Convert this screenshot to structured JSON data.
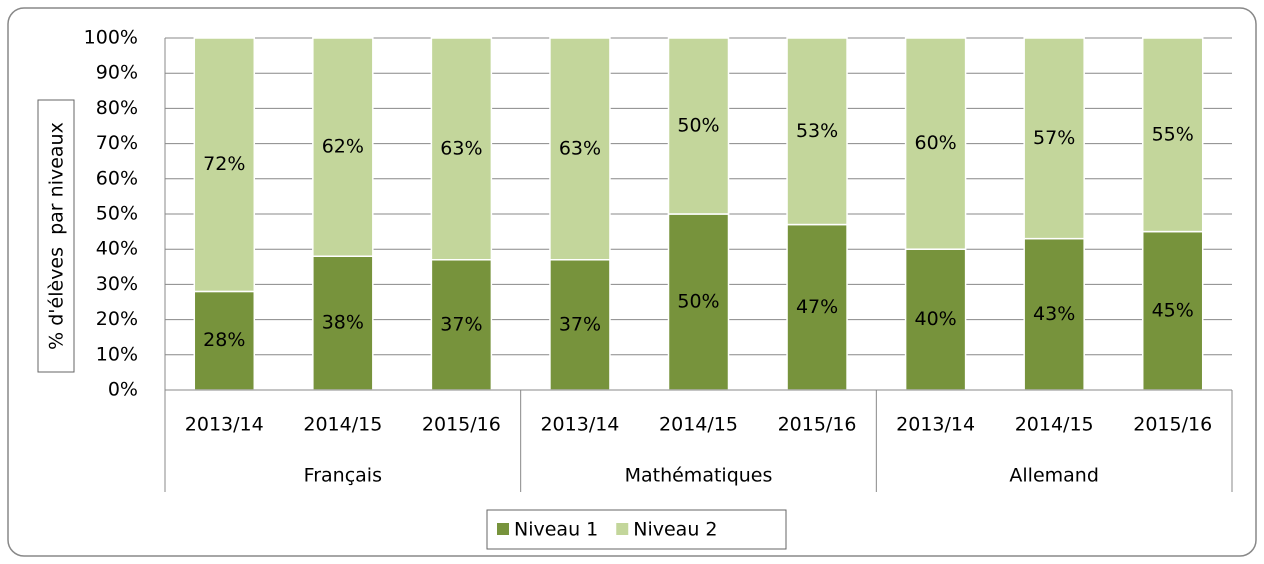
{
  "chart_data": {
    "type": "stacked_bar",
    "y_axis_label": "% d'élèves  par niveaux",
    "categories": [
      "2013/14",
      "2014/15",
      "2015/16",
      "2013/14",
      "2014/15",
      "2015/16",
      "2013/14",
      "2014/15",
      "2015/16"
    ],
    "category_groups": [
      "Français",
      "Mathématiques",
      "Allemand"
    ],
    "series": [
      {
        "name": "Niveau 1",
        "color": "#77933c",
        "values": [
          28,
          38,
          37,
          37,
          50,
          47,
          40,
          43,
          45
        ],
        "value_labels": [
          "28%",
          "38%",
          "37%",
          "37%",
          "50%",
          "47%",
          "40%",
          "43%",
          "45%"
        ]
      },
      {
        "name": "Niveau 2",
        "color": "#c3d69b",
        "values": [
          72,
          62,
          63,
          63,
          50,
          53,
          60,
          57,
          55
        ],
        "value_labels": [
          "72%",
          "62%",
          "63%",
          "63%",
          "50%",
          "53%",
          "60%",
          "57%",
          "55%"
        ]
      }
    ],
    "ylim": [
      0,
      100
    ],
    "yticks": [
      {
        "value": 0,
        "label": "0%"
      },
      {
        "value": 10,
        "label": "10%"
      },
      {
        "value": 20,
        "label": "20%"
      },
      {
        "value": 30,
        "label": "30%"
      },
      {
        "value": 40,
        "label": "40%"
      },
      {
        "value": 50,
        "label": "50%"
      },
      {
        "value": 60,
        "label": "60%"
      },
      {
        "value": 70,
        "label": "70%"
      },
      {
        "value": 80,
        "label": "80%"
      },
      {
        "value": 90,
        "label": "90%"
      },
      {
        "value": 100,
        "label": "100%"
      }
    ],
    "grid": true,
    "legend": "bottom"
  }
}
